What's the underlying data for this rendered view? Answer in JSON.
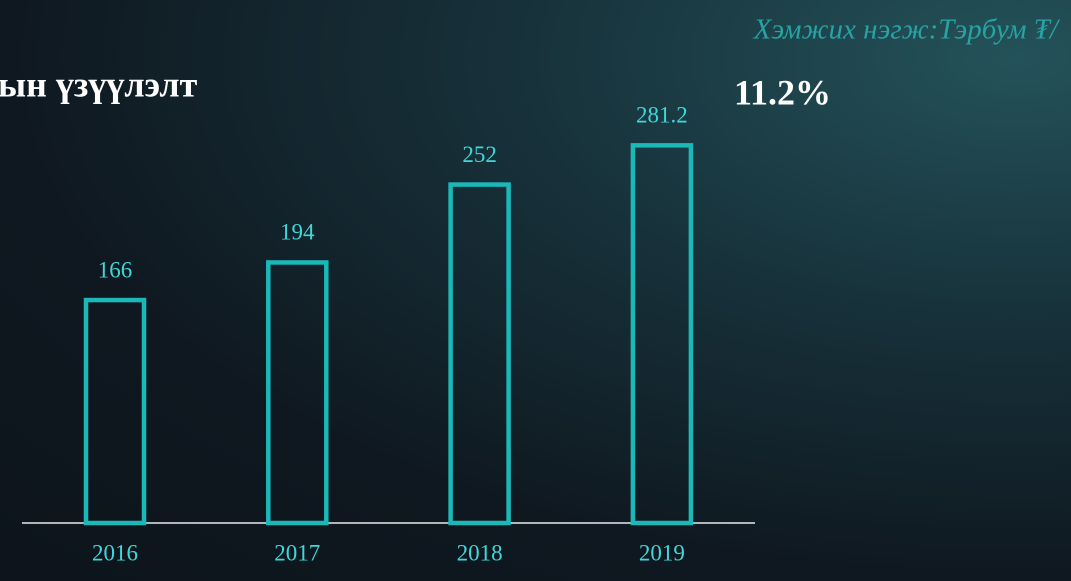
{
  "chart_data": {
    "type": "bar",
    "title": "ын үзүүлэлт",
    "subtitle": "Хэмжих нэгж:Тэрбум ₮/",
    "annotation": "11.2%",
    "categories": [
      "2016",
      "2017",
      "2018",
      "2019"
    ],
    "values": [
      166,
      194,
      252,
      281.2
    ],
    "color": "#1bb8b8"
  }
}
